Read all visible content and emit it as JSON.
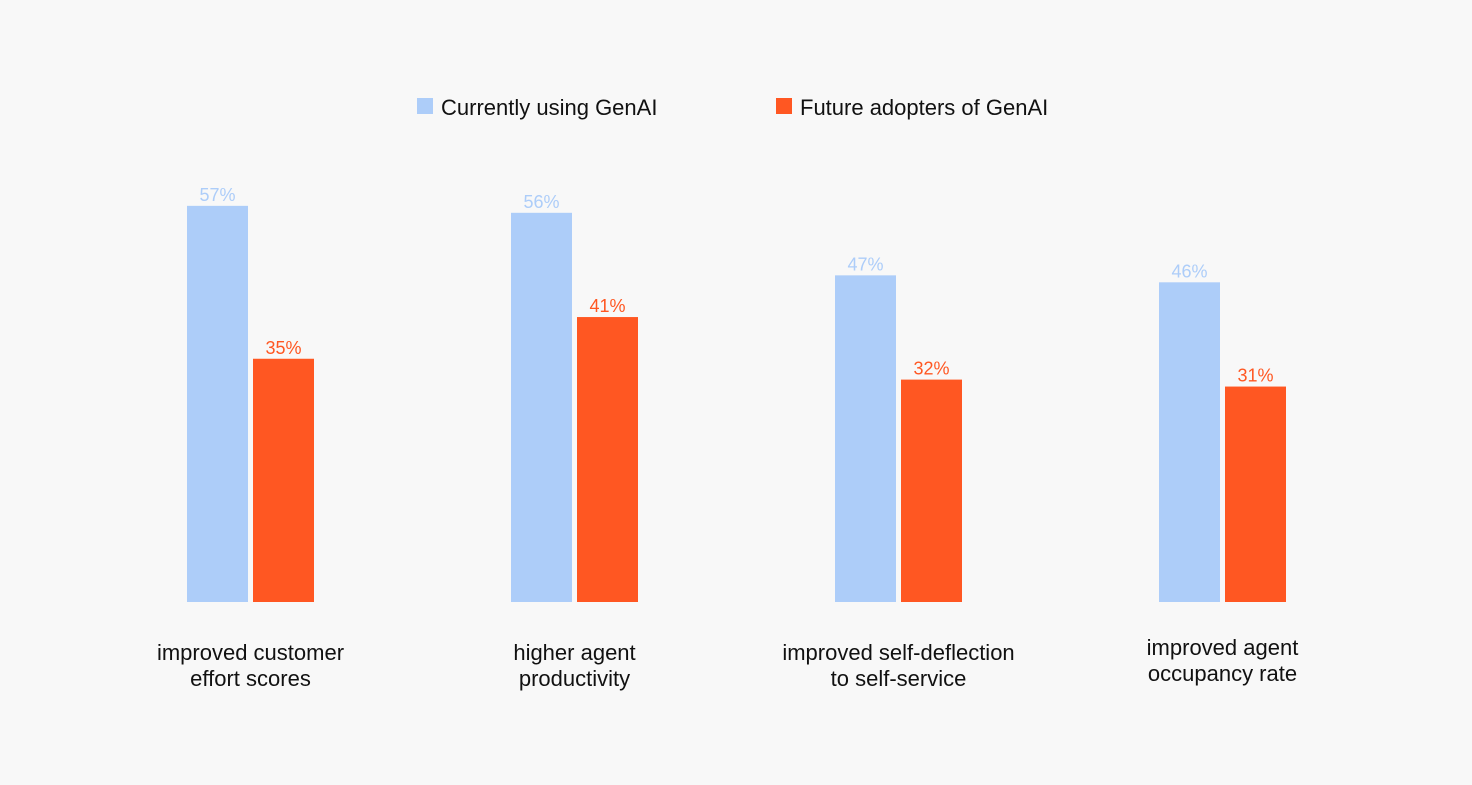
{
  "chart_data": {
    "type": "bar",
    "categories": [
      [
        "improved customer",
        "effort scores"
      ],
      [
        "higher agent",
        "productivity"
      ],
      [
        "improved self-deflection",
        "to self-service"
      ],
      [
        "improved agent",
        "occupancy rate"
      ]
    ],
    "series": [
      {
        "name": "Currently using GenAI",
        "color": "#adcdf9",
        "values": [
          57,
          56,
          47,
          46
        ],
        "labels": [
          "57%",
          "56%",
          "47%",
          "46%"
        ]
      },
      {
        "name": "Future adopters of GenAI",
        "color": "#ff5722",
        "values": [
          35,
          41,
          32,
          31
        ],
        "labels": [
          "35%",
          "41%",
          "32%",
          "31%"
        ]
      }
    ],
    "ylim": [
      0,
      100
    ],
    "grid": false,
    "legend": "top-center"
  }
}
